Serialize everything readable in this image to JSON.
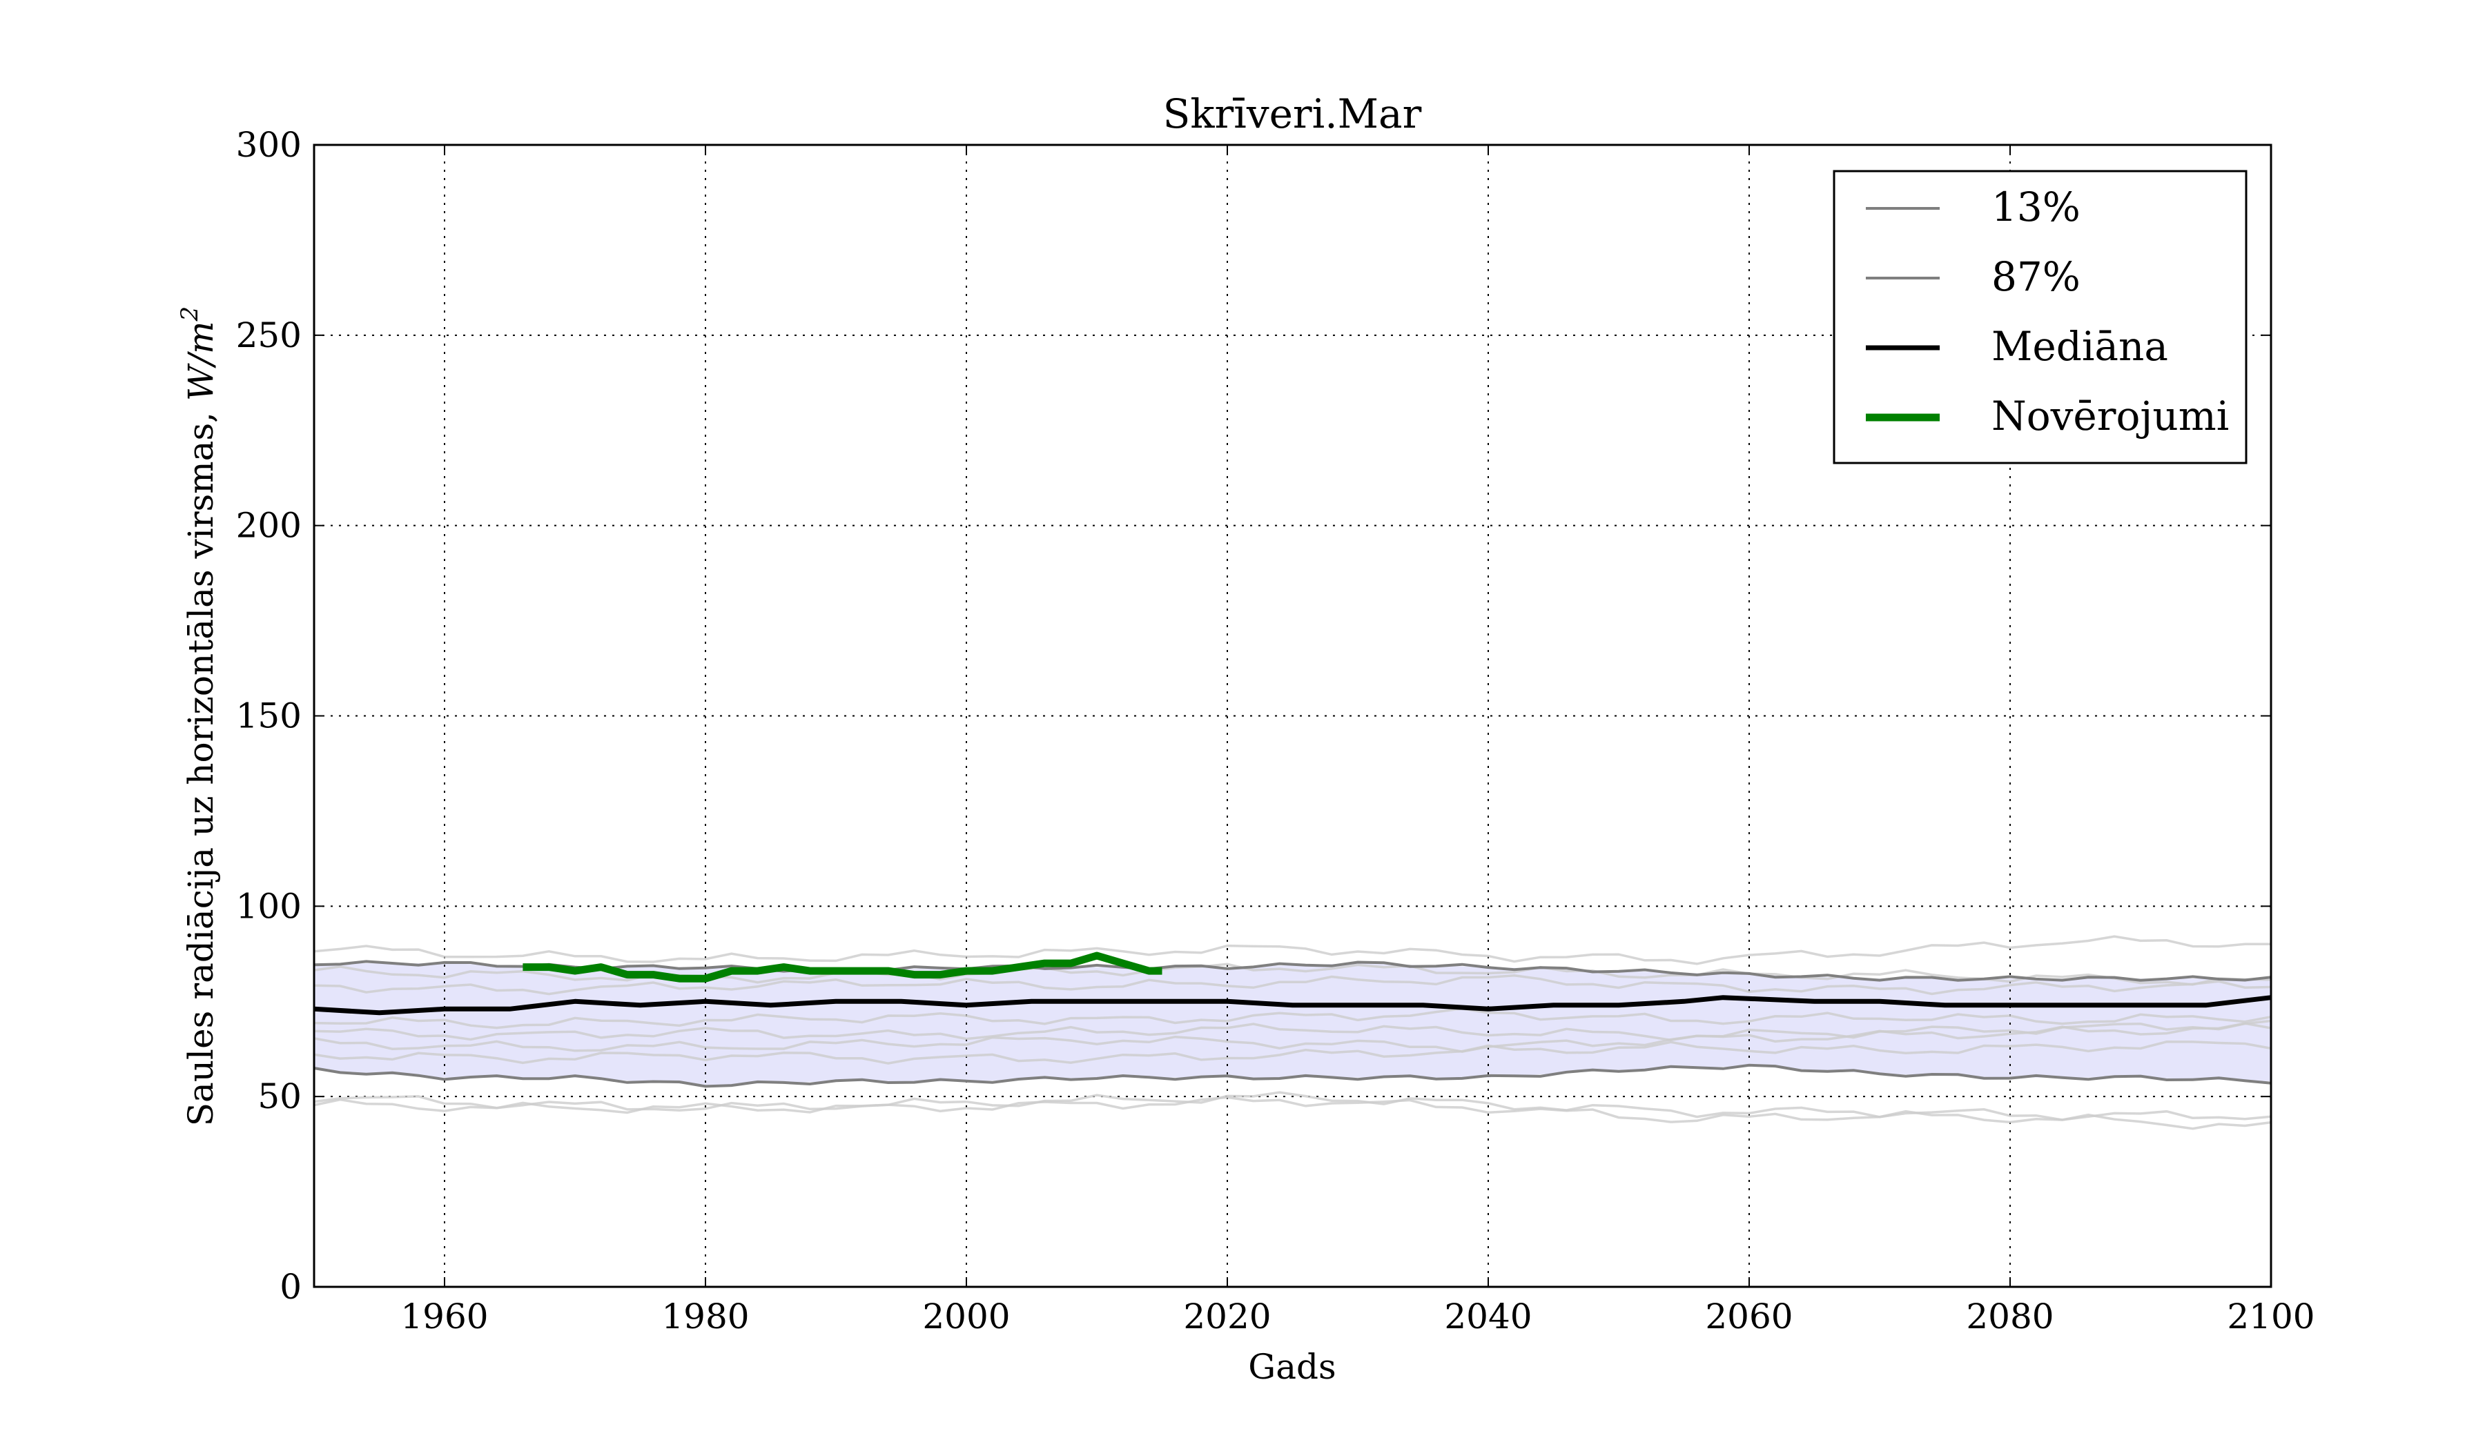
{
  "chart_data": {
    "type": "line",
    "title": "Skrīveri.Mar",
    "xlabel": "Gads",
    "ylabel_main": "Saules radiācija uz horizontālas virsmas, ",
    "ylabel_unit": "W/m",
    "ylabel_sup": "2",
    "xlim": [
      1950,
      2100
    ],
    "ylim": [
      0,
      300
    ],
    "xticks": [
      "1960",
      "1980",
      "2000",
      "2020",
      "2040",
      "2060",
      "2080",
      "2100"
    ],
    "yticks": [
      "0",
      "50",
      "100",
      "150",
      "200",
      "250",
      "300"
    ],
    "grid": true,
    "legend_position": "top-right",
    "legend": [
      "13%",
      "87%",
      "Mediāna",
      "Novērojumi"
    ],
    "colors": {
      "band": "#e5e5fb",
      "percentile": "#7f7f7f",
      "median": "#000000",
      "observations": "#008000",
      "ensemble": "#cccccc"
    },
    "series": [
      {
        "name": "13%",
        "x": [
          1950,
          1960,
          1970,
          1980,
          1990,
          2000,
          2010,
          2020,
          2030,
          2040,
          2050,
          2060,
          2070,
          2080,
          2090,
          2100
        ],
        "y": [
          57,
          55,
          55,
          53,
          54,
          54,
          55,
          55,
          55,
          55,
          57,
          58,
          56,
          55,
          55,
          54
        ]
      },
      {
        "name": "87%",
        "x": [
          1950,
          1960,
          1970,
          1980,
          1990,
          2000,
          2010,
          2020,
          2030,
          2040,
          2050,
          2060,
          2070,
          2080,
          2090,
          2100
        ],
        "y": [
          85,
          85,
          84,
          84,
          83,
          84,
          84,
          84,
          85,
          84,
          83,
          82,
          81,
          81,
          81,
          81
        ]
      },
      {
        "name": "Mediāna",
        "x": [
          1950,
          1955,
          1960,
          1965,
          1970,
          1975,
          1980,
          1985,
          1990,
          1995,
          2000,
          2005,
          2010,
          2015,
          2020,
          2025,
          2030,
          2035,
          2040,
          2045,
          2050,
          2055,
          2058,
          2065,
          2070,
          2075,
          2080,
          2085,
          2090,
          2095,
          2100
        ],
        "y": [
          73,
          72,
          73,
          73,
          75,
          74,
          75,
          74,
          75,
          75,
          74,
          75,
          75,
          75,
          75,
          74,
          74,
          74,
          73,
          74,
          74,
          75,
          76,
          75,
          75,
          74,
          74,
          74,
          74,
          74,
          76
        ]
      },
      {
        "name": "Novērojumi",
        "x": [
          1966,
          1968,
          1970,
          1972,
          1974,
          1976,
          1978,
          1980,
          1982,
          1984,
          1986,
          1988,
          1990,
          1992,
          1994,
          1996,
          1998,
          2000,
          2002,
          2004,
          2006,
          2008,
          2010,
          2012,
          2014,
          2015
        ],
        "y": [
          84,
          84,
          83,
          84,
          82,
          82,
          81,
          81,
          83,
          83,
          84,
          83,
          83,
          83,
          83,
          82,
          82,
          83,
          83,
          84,
          85,
          85,
          87,
          85,
          83,
          83
        ]
      }
    ],
    "ensemble_members": [
      {
        "x": [
          1950,
          1965,
          1980,
          1995,
          2010,
          2025,
          2040,
          2055,
          2070,
          2085,
          2100
        ],
        "y": [
          89,
          87,
          86,
          87,
          88,
          89,
          87,
          86,
          88,
          91,
          90
        ]
      },
      {
        "x": [
          1950,
          1965,
          1980,
          1995,
          2010,
          2025,
          2040,
          2055,
          2070,
          2085,
          2100
        ],
        "y": [
          83,
          82,
          81,
          82,
          83,
          84,
          83,
          82,
          82,
          81,
          80
        ]
      },
      {
        "x": [
          1950,
          1965,
          1980,
          1995,
          2010,
          2025,
          2040,
          2055,
          2070,
          2085,
          2100
        ],
        "y": [
          79,
          78,
          79,
          80,
          79,
          80,
          81,
          79,
          78,
          79,
          79
        ]
      },
      {
        "x": [
          1950,
          1965,
          1980,
          1995,
          2010,
          2025,
          2040,
          2055,
          2070,
          2085,
          2100
        ],
        "y": [
          70,
          69,
          70,
          71,
          70,
          71,
          72,
          70,
          71,
          70,
          71
        ]
      },
      {
        "x": [
          1950,
          1965,
          1980,
          1995,
          2010,
          2025,
          2040,
          2055,
          2070,
          2085,
          2100
        ],
        "y": [
          67,
          66,
          67,
          66,
          67,
          68,
          67,
          66,
          67,
          68,
          69
        ]
      },
      {
        "x": [
          1950,
          1965,
          1980,
          1995,
          2010,
          2025,
          2040,
          2055,
          2070,
          2085,
          2100
        ],
        "y": [
          64,
          63,
          63,
          64,
          65,
          64,
          63,
          65,
          66,
          67,
          68
        ]
      },
      {
        "x": [
          1950,
          1965,
          1980,
          1995,
          2010,
          2025,
          2040,
          2055,
          2070,
          2085,
          2100
        ],
        "y": [
          61,
          60,
          61,
          60,
          60,
          61,
          62,
          63,
          62,
          63,
          64
        ]
      },
      {
        "x": [
          1950,
          1965,
          1980,
          1995,
          2010,
          2025,
          2040,
          2055,
          2070,
          2085,
          2100
        ],
        "y": [
          50,
          48,
          47,
          48,
          49,
          50,
          48,
          46,
          46,
          45,
          45
        ]
      },
      {
        "x": [
          1950,
          1965,
          1980,
          1995,
          2010,
          2025,
          2040,
          2055,
          2070,
          2085,
          2100
        ],
        "y": [
          48,
          47,
          47,
          47,
          48,
          49,
          47,
          44,
          45,
          44,
          42
        ]
      }
    ]
  }
}
